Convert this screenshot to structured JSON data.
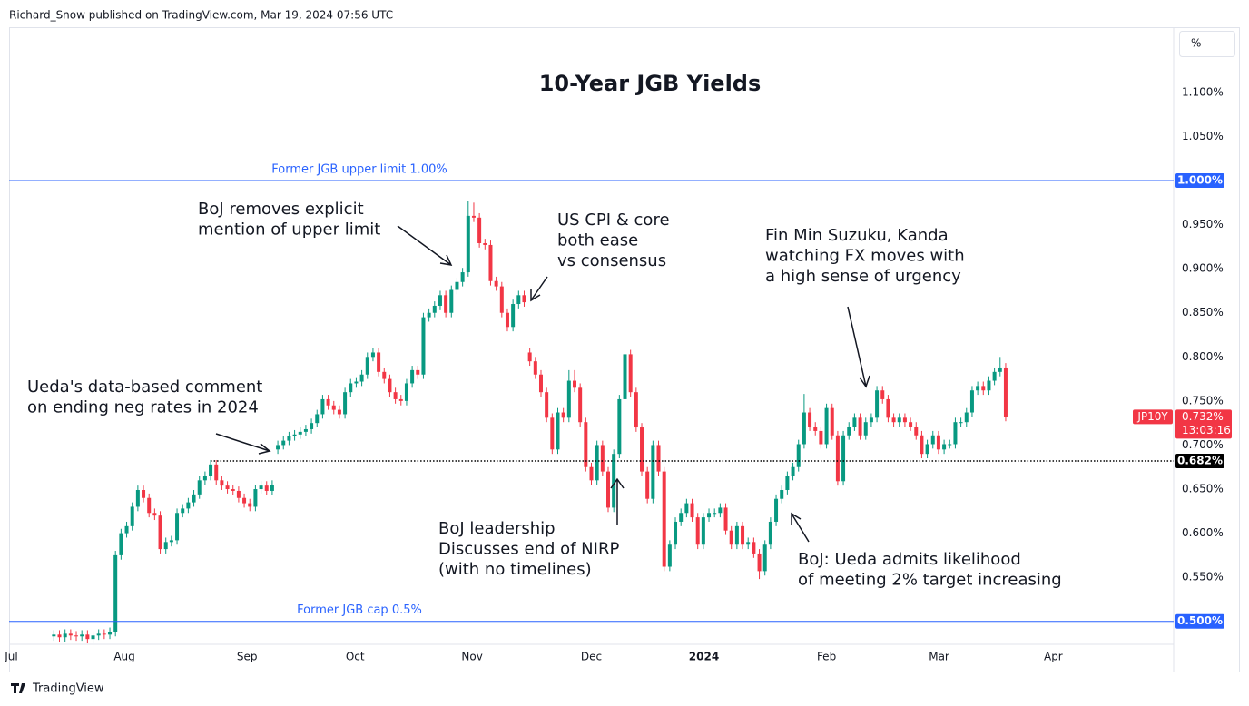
{
  "header": {
    "publisher": "Richard_Snow published on TradingView.com, Mar 19, 2024 07:56 UTC"
  },
  "footer": {
    "brand": "TradingView"
  },
  "chart_data": {
    "type": "candlestick",
    "title": "10-Year JGB Yields",
    "y_unit": "%",
    "ylim": [
      0.474,
      1.174
    ],
    "yticks": [
      {
        "value": 0.55,
        "label": "0.550%"
      },
      {
        "value": 0.6,
        "label": "0.600%"
      },
      {
        "value": 0.65,
        "label": "0.650%"
      },
      {
        "value": 0.7,
        "label": "0.700%"
      },
      {
        "value": 0.75,
        "label": "0.750%"
      },
      {
        "value": 0.8,
        "label": "0.800%"
      },
      {
        "value": 0.85,
        "label": "0.850%"
      },
      {
        "value": 0.9,
        "label": "0.900%"
      },
      {
        "value": 0.95,
        "label": "0.950%"
      },
      {
        "value": 1.05,
        "label": "1.050%"
      },
      {
        "value": 1.1,
        "label": "1.100%"
      }
    ],
    "xlim": [
      -8,
      200
    ],
    "xticks": [
      {
        "value": -7.6,
        "label": "Jul"
      },
      {
        "value": 12.6,
        "label": "Aug"
      },
      {
        "value": 34.5,
        "label": "Sep"
      },
      {
        "value": 53.8,
        "label": "Oct"
      },
      {
        "value": 74.7,
        "label": "Nov"
      },
      {
        "value": 96,
        "label": "Dec"
      },
      {
        "value": 116.1,
        "label": "2024"
      },
      {
        "value": 138,
        "label": "Feb"
      },
      {
        "value": 158.1,
        "label": "Mar"
      },
      {
        "value": 178.5,
        "label": "Apr"
      }
    ],
    "grid": false,
    "series": [
      {
        "name": "JP10Y",
        "up_color": "#089981",
        "down_color": "#f23645",
        "open": [
          0.483,
          0.485,
          0.482,
          0.486,
          0.484,
          0.483,
          0.485,
          0.48,
          0.484,
          0.486,
          0.485,
          0.488,
          0.575,
          0.6,
          0.608,
          0.63,
          0.649,
          0.64,
          0.623,
          0.62,
          0.582,
          0.59,
          0.592,
          0.623,
          0.628,
          0.635,
          0.644,
          0.66,
          0.665,
          0.678,
          0.66,
          0.654,
          0.65,
          0.648,
          0.64,
          0.634,
          0.63,
          0.65,
          0.654,
          0.648,
          0.695,
          0.7,
          0.705,
          0.71,
          0.712,
          0.715,
          0.718,
          0.725,
          0.735,
          0.752,
          0.745,
          0.74,
          0.735,
          0.76,
          0.77,
          0.772,
          0.78,
          0.8,
          0.805,
          0.783,
          0.775,
          0.76,
          0.752,
          0.75,
          0.77,
          0.785,
          0.78,
          0.845,
          0.85,
          0.858,
          0.87,
          0.85,
          0.876,
          0.885,
          0.896,
          0.96,
          0.958,
          0.929,
          0.927,
          0.886,
          0.88,
          0.85,
          0.834,
          0.86,
          0.87,
          0.805,
          0.795,
          0.78,
          0.76,
          0.731,
          0.695,
          0.737,
          0.731,
          0.773,
          0.765,
          0.726,
          0.675,
          0.66,
          0.7,
          0.67,
          0.629,
          0.69,
          0.752,
          0.803,
          0.76,
          0.72,
          0.67,
          0.639,
          0.7,
          0.67,
          0.562,
          0.587,
          0.613,
          0.623,
          0.634,
          0.618,
          0.587,
          0.618,
          0.623,
          0.623,
          0.629,
          0.603,
          0.587,
          0.608,
          0.587,
          0.59,
          0.577,
          0.557,
          0.587,
          0.613,
          0.639,
          0.649,
          0.665,
          0.675,
          0.701,
          0.737,
          0.721,
          0.716,
          0.701,
          0.742,
          0.711,
          0.659,
          0.711,
          0.721,
          0.731,
          0.711,
          0.726,
          0.731,
          0.762,
          0.752,
          0.731,
          0.726,
          0.731,
          0.726,
          0.721,
          0.711,
          0.69,
          0.701,
          0.711,
          0.695,
          0.701,
          0.701,
          0.726,
          0.726,
          0.737,
          0.762,
          0.767,
          0.762,
          0.773,
          0.783,
          0.788
        ],
        "high": [
          0.49,
          0.49,
          0.491,
          0.491,
          0.489,
          0.49,
          0.49,
          0.489,
          0.491,
          0.491,
          0.493,
          0.58,
          0.605,
          0.613,
          0.635,
          0.654,
          0.654,
          0.645,
          0.628,
          0.625,
          0.595,
          0.597,
          0.628,
          0.633,
          0.64,
          0.649,
          0.665,
          0.67,
          0.683,
          0.683,
          0.665,
          0.659,
          0.655,
          0.653,
          0.645,
          0.639,
          0.655,
          0.659,
          0.659,
          0.66,
          0.705,
          0.71,
          0.715,
          0.717,
          0.72,
          0.723,
          0.73,
          0.74,
          0.757,
          0.757,
          0.75,
          0.745,
          0.765,
          0.775,
          0.777,
          0.785,
          0.805,
          0.81,
          0.81,
          0.788,
          0.78,
          0.765,
          0.757,
          0.775,
          0.79,
          0.79,
          0.85,
          0.855,
          0.863,
          0.875,
          0.875,
          0.881,
          0.89,
          0.901,
          0.977,
          0.975,
          0.963,
          0.934,
          0.932,
          0.891,
          0.885,
          0.855,
          0.865,
          0.875,
          0.875,
          0.81,
          0.8,
          0.785,
          0.765,
          0.736,
          0.742,
          0.742,
          0.785,
          0.785,
          0.77,
          0.731,
          0.68,
          0.705,
          0.705,
          0.675,
          0.695,
          0.757,
          0.81,
          0.808,
          0.765,
          0.725,
          0.675,
          0.705,
          0.705,
          0.675,
          0.592,
          0.618,
          0.628,
          0.639,
          0.639,
          0.623,
          0.623,
          0.628,
          0.628,
          0.634,
          0.634,
          0.608,
          0.613,
          0.613,
          0.595,
          0.595,
          0.582,
          0.592,
          0.618,
          0.644,
          0.654,
          0.67,
          0.68,
          0.706,
          0.758,
          0.742,
          0.726,
          0.721,
          0.747,
          0.747,
          0.716,
          0.716,
          0.726,
          0.736,
          0.736,
          0.731,
          0.736,
          0.767,
          0.767,
          0.757,
          0.736,
          0.736,
          0.736,
          0.731,
          0.726,
          0.716,
          0.706,
          0.716,
          0.716,
          0.706,
          0.706,
          0.731,
          0.731,
          0.742,
          0.767,
          0.772,
          0.772,
          0.778,
          0.788,
          0.8,
          0.793
        ],
        "low": [
          0.478,
          0.477,
          0.477,
          0.479,
          0.478,
          0.478,
          0.475,
          0.475,
          0.479,
          0.48,
          0.48,
          0.483,
          0.57,
          0.595,
          0.603,
          0.625,
          0.635,
          0.618,
          0.615,
          0.577,
          0.577,
          0.585,
          0.587,
          0.618,
          0.623,
          0.63,
          0.639,
          0.655,
          0.66,
          0.655,
          0.649,
          0.645,
          0.643,
          0.635,
          0.629,
          0.625,
          0.625,
          0.645,
          0.643,
          0.643,
          0.69,
          0.695,
          0.7,
          0.705,
          0.707,
          0.71,
          0.713,
          0.72,
          0.73,
          0.74,
          0.735,
          0.73,
          0.73,
          0.755,
          0.765,
          0.767,
          0.775,
          0.795,
          0.778,
          0.77,
          0.755,
          0.747,
          0.745,
          0.745,
          0.765,
          0.775,
          0.775,
          0.84,
          0.845,
          0.853,
          0.845,
          0.845,
          0.871,
          0.88,
          0.891,
          0.953,
          0.924,
          0.922,
          0.881,
          0.875,
          0.845,
          0.829,
          0.829,
          0.855,
          0.857,
          0.79,
          0.775,
          0.755,
          0.726,
          0.69,
          0.69,
          0.726,
          0.726,
          0.76,
          0.721,
          0.67,
          0.655,
          0.655,
          0.665,
          0.624,
          0.624,
          0.685,
          0.747,
          0.755,
          0.715,
          0.665,
          0.634,
          0.634,
          0.665,
          0.557,
          0.557,
          0.582,
          0.608,
          0.618,
          0.613,
          0.582,
          0.582,
          0.613,
          0.618,
          0.618,
          0.598,
          0.582,
          0.582,
          0.582,
          0.582,
          0.572,
          0.548,
          0.552,
          0.582,
          0.608,
          0.634,
          0.644,
          0.66,
          0.67,
          0.696,
          0.716,
          0.711,
          0.696,
          0.696,
          0.706,
          0.654,
          0.654,
          0.706,
          0.716,
          0.706,
          0.706,
          0.721,
          0.726,
          0.747,
          0.726,
          0.721,
          0.721,
          0.721,
          0.716,
          0.706,
          0.685,
          0.685,
          0.696,
          0.69,
          0.69,
          0.696,
          0.696,
          0.721,
          0.721,
          0.732,
          0.757,
          0.757,
          0.757,
          0.768,
          0.778,
          0.727
        ],
        "close": [
          0.485,
          0.482,
          0.486,
          0.484,
          0.483,
          0.485,
          0.48,
          0.484,
          0.486,
          0.485,
          0.488,
          0.575,
          0.6,
          0.608,
          0.63,
          0.649,
          0.64,
          0.623,
          0.62,
          0.582,
          0.59,
          0.592,
          0.623,
          0.628,
          0.635,
          0.644,
          0.66,
          0.665,
          0.678,
          0.66,
          0.654,
          0.65,
          0.648,
          0.64,
          0.634,
          0.63,
          0.65,
          0.654,
          0.648,
          0.655,
          0.7,
          0.705,
          0.71,
          0.712,
          0.715,
          0.718,
          0.725,
          0.735,
          0.752,
          0.745,
          0.74,
          0.735,
          0.76,
          0.77,
          0.772,
          0.78,
          0.8,
          0.805,
          0.783,
          0.775,
          0.76,
          0.752,
          0.75,
          0.77,
          0.785,
          0.78,
          0.845,
          0.85,
          0.858,
          0.87,
          0.85,
          0.876,
          0.885,
          0.896,
          0.96,
          0.958,
          0.929,
          0.927,
          0.886,
          0.88,
          0.85,
          0.834,
          0.86,
          0.87,
          0.862,
          0.795,
          0.78,
          0.76,
          0.731,
          0.695,
          0.737,
          0.731,
          0.773,
          0.765,
          0.726,
          0.675,
          0.66,
          0.7,
          0.67,
          0.629,
          0.69,
          0.752,
          0.803,
          0.76,
          0.72,
          0.67,
          0.639,
          0.7,
          0.67,
          0.562,
          0.587,
          0.613,
          0.623,
          0.634,
          0.618,
          0.587,
          0.618,
          0.623,
          0.623,
          0.629,
          0.603,
          0.587,
          0.608,
          0.587,
          0.59,
          0.577,
          0.557,
          0.587,
          0.613,
          0.639,
          0.649,
          0.665,
          0.675,
          0.701,
          0.737,
          0.721,
          0.716,
          0.701,
          0.742,
          0.711,
          0.659,
          0.711,
          0.721,
          0.731,
          0.711,
          0.726,
          0.731,
          0.762,
          0.752,
          0.731,
          0.726,
          0.731,
          0.726,
          0.721,
          0.711,
          0.69,
          0.701,
          0.711,
          0.695,
          0.701,
          0.701,
          0.726,
          0.726,
          0.737,
          0.762,
          0.767,
          0.762,
          0.773,
          0.783,
          0.788,
          0.732
        ]
      }
    ],
    "levels": [
      {
        "value": 1.0,
        "label": "Former JGB upper limit 1.00%",
        "badge": "1.000%",
        "color": "#2962ff",
        "style": "solid"
      },
      {
        "value": 0.5,
        "label": "Former JGB cap 0.5%",
        "badge": "0.500%",
        "color": "#2962ff",
        "style": "solid"
      },
      {
        "value": 0.682,
        "badge": "0.682%",
        "color": "#000000",
        "style": "dotted"
      }
    ],
    "last_price": {
      "symbol": "JP10Y",
      "label": "0.732%",
      "countdown": "13:03:16",
      "color": "#f23645"
    },
    "annotations": [
      {
        "lines": [
          "Ueda's data-based comment",
          "on ending neg rates in 2024"
        ]
      },
      {
        "lines": [
          "BoJ removes explicit",
          "mention of upper limit"
        ]
      },
      {
        "lines": [
          "US CPI & core",
          "both ease",
          "vs consensus"
        ]
      },
      {
        "lines": [
          "Fin Min Suzuku, Kanda",
          "watching FX moves with",
          "a high sense of urgency"
        ]
      },
      {
        "lines": [
          "BoJ leadership",
          "Discusses end of NIRP",
          "(with no timelines)"
        ]
      },
      {
        "lines": [
          "BoJ: Ueda admits likelihood",
          "of meeting 2% target increasing"
        ]
      }
    ]
  }
}
